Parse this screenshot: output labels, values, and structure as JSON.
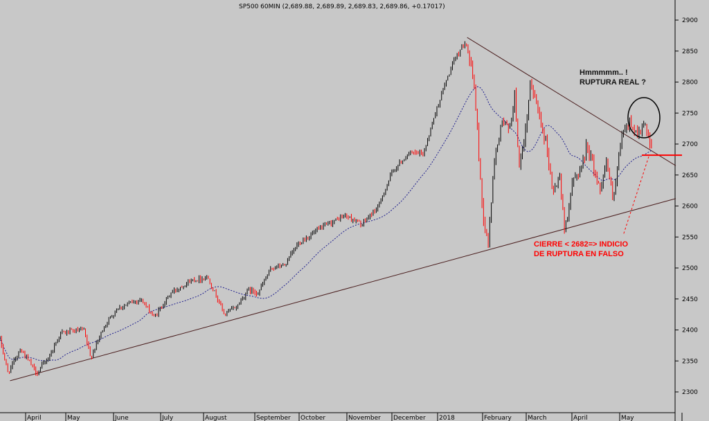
{
  "chart_data": {
    "type": "candlestick",
    "title": "SP500 60MIN (2,689.88, 2,689.89, 2,689.83, 2,689.86, +0.17017)",
    "xlabel": "",
    "ylabel": "",
    "ylim": [
      2280,
      2920
    ],
    "y_ticks": [
      2300,
      2350,
      2400,
      2450,
      2500,
      2550,
      2600,
      2650,
      2700,
      2750,
      2800,
      2850,
      2900
    ],
    "y_axis_side": "right",
    "grid": false,
    "x_tick_labels": [
      "April",
      "May",
      "June",
      "July",
      "August",
      "September",
      "October",
      "November",
      "December",
      "2018",
      "February",
      "March",
      "April",
      "May"
    ],
    "price_anchors": [
      {
        "t": 0.0,
        "v": 2385
      },
      {
        "t": 0.012,
        "v": 2330
      },
      {
        "t": 0.03,
        "v": 2370
      },
      {
        "t": 0.055,
        "v": 2330
      },
      {
        "t": 0.075,
        "v": 2360
      },
      {
        "t": 0.09,
        "v": 2395
      },
      {
        "t": 0.125,
        "v": 2400
      },
      {
        "t": 0.135,
        "v": 2355
      },
      {
        "t": 0.155,
        "v": 2405
      },
      {
        "t": 0.175,
        "v": 2435
      },
      {
        "t": 0.21,
        "v": 2450
      },
      {
        "t": 0.23,
        "v": 2420
      },
      {
        "t": 0.255,
        "v": 2460
      },
      {
        "t": 0.285,
        "v": 2480
      },
      {
        "t": 0.31,
        "v": 2485
      },
      {
        "t": 0.335,
        "v": 2425
      },
      {
        "t": 0.355,
        "v": 2440
      },
      {
        "t": 0.37,
        "v": 2465
      },
      {
        "t": 0.385,
        "v": 2460
      },
      {
        "t": 0.405,
        "v": 2500
      },
      {
        "t": 0.425,
        "v": 2505
      },
      {
        "t": 0.445,
        "v": 2540
      },
      {
        "t": 0.48,
        "v": 2565
      },
      {
        "t": 0.515,
        "v": 2585
      },
      {
        "t": 0.54,
        "v": 2570
      },
      {
        "t": 0.565,
        "v": 2600
      },
      {
        "t": 0.585,
        "v": 2655
      },
      {
        "t": 0.61,
        "v": 2685
      },
      {
        "t": 0.632,
        "v": 2685
      },
      {
        "t": 0.648,
        "v": 2745
      },
      {
        "t": 0.665,
        "v": 2800
      },
      {
        "t": 0.68,
        "v": 2840
      },
      {
        "t": 0.695,
        "v": 2868
      },
      {
        "t": 0.708,
        "v": 2790
      },
      {
        "t": 0.72,
        "v": 2590
      },
      {
        "t": 0.728,
        "v": 2535
      },
      {
        "t": 0.738,
        "v": 2680
      },
      {
        "t": 0.75,
        "v": 2740
      },
      {
        "t": 0.76,
        "v": 2720
      },
      {
        "t": 0.768,
        "v": 2780
      },
      {
        "t": 0.775,
        "v": 2660
      },
      {
        "t": 0.782,
        "v": 2700
      },
      {
        "t": 0.792,
        "v": 2800
      },
      {
        "t": 0.805,
        "v": 2745
      },
      {
        "t": 0.815,
        "v": 2700
      },
      {
        "t": 0.825,
        "v": 2620
      },
      {
        "t": 0.835,
        "v": 2650
      },
      {
        "t": 0.842,
        "v": 2560
      },
      {
        "t": 0.855,
        "v": 2640
      },
      {
        "t": 0.868,
        "v": 2665
      },
      {
        "t": 0.876,
        "v": 2700
      },
      {
        "t": 0.885,
        "v": 2665
      },
      {
        "t": 0.895,
        "v": 2625
      },
      {
        "t": 0.905,
        "v": 2675
      },
      {
        "t": 0.915,
        "v": 2605
      },
      {
        "t": 0.928,
        "v": 2715
      },
      {
        "t": 0.94,
        "v": 2735
      },
      {
        "t": 0.952,
        "v": 2715
      },
      {
        "t": 0.962,
        "v": 2730
      },
      {
        "t": 0.972,
        "v": 2690
      }
    ],
    "trendlines": [
      {
        "name": "support",
        "from": {
          "t": 0.015,
          "v": 2318
        },
        "to": {
          "t": 1.0,
          "v": 2612
        },
        "color": "#4a1e1e"
      },
      {
        "name": "resistance",
        "from": {
          "t": 0.697,
          "v": 2872
        },
        "to": {
          "t": 1.0,
          "v": 2665
        },
        "color": "#4a1e1e"
      }
    ],
    "horizontal_line": {
      "value": 2682,
      "color": "#ff0000"
    },
    "moving_average_color": "#1a1a8c",
    "up_color": "#000000",
    "down_color": "#ff0000",
    "annotations": [
      {
        "lines": [
          "Hmmmmm.. !",
          "RUPTURA REAL ?"
        ],
        "color": "#111111"
      },
      {
        "lines": [
          "CIERRE < 2682=> INDICIO",
          "DE RUPTURA EN FALSO"
        ],
        "color": "#ff0000"
      }
    ]
  }
}
